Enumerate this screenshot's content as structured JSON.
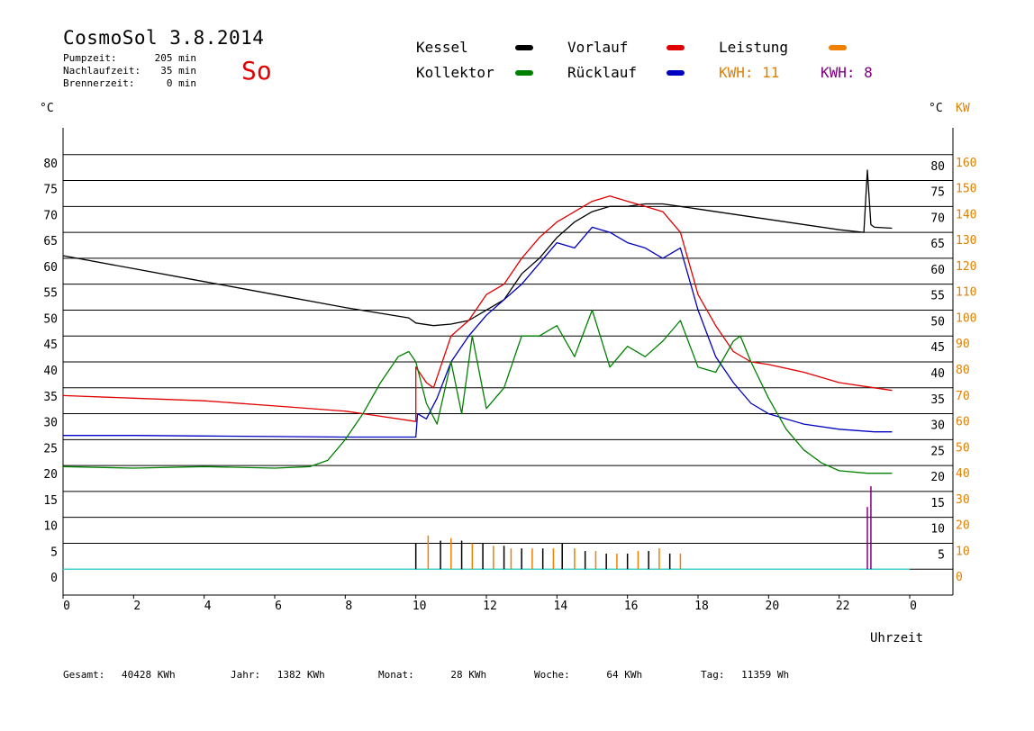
{
  "header": {
    "title": "CosmoSol 3.8.2014",
    "day": "So",
    "stats": [
      {
        "label": "Pumpzeit:",
        "value": "205 min"
      },
      {
        "label": "Nachlaufzeit:",
        "value": "35 min"
      },
      {
        "label": "Brennerzeit:",
        "value": "0 min"
      }
    ]
  },
  "legend": {
    "items": [
      {
        "key": "kessel",
        "label": "Kessel",
        "color": "#000000"
      },
      {
        "key": "vorlauf",
        "label": "Vorlauf",
        "color": "#e00000"
      },
      {
        "key": "leistung",
        "label": "Leistung",
        "color": "#f08000"
      },
      {
        "key": "kollektor",
        "label": "Kollektor",
        "color": "#008000"
      },
      {
        "key": "ruecklauf",
        "label": "Rücklauf",
        "color": "#0000c0"
      }
    ],
    "kwh": [
      {
        "label": "KWH:",
        "value": "11",
        "color": "#e08000"
      },
      {
        "label": "KWH:",
        "value": "8",
        "color": "#800080"
      }
    ]
  },
  "axes": {
    "left_unit": "°C",
    "right_unit": "°C",
    "right_unit2": "KW",
    "xlabel": "Uhrzeit",
    "left_ticks": [
      "0",
      "5",
      "10",
      "15",
      "20",
      "25",
      "30",
      "35",
      "40",
      "45",
      "50",
      "55",
      "60",
      "65",
      "70",
      "75",
      "80"
    ],
    "right_ticks": [
      "5",
      "10",
      "15",
      "20",
      "25",
      "30",
      "35",
      "40",
      "45",
      "50",
      "55",
      "60",
      "65",
      "70",
      "75",
      "80"
    ],
    "kw_ticks": [
      "0",
      "10",
      "20",
      "30",
      "40",
      "50",
      "60",
      "70",
      "80",
      "90",
      "100",
      "110",
      "120",
      "130",
      "140",
      "150",
      "160"
    ],
    "x_ticks": [
      "0",
      "2",
      "4",
      "6",
      "8",
      "10",
      "12",
      "14",
      "16",
      "18",
      "20",
      "22",
      "0"
    ]
  },
  "footer": [
    {
      "label": "Gesamt:",
      "value": "40428 KWh"
    },
    {
      "label": "Jahr:",
      "value": "1382 KWh"
    },
    {
      "label": "Monat:",
      "value": "28 KWh"
    },
    {
      "label": "Woche:",
      "value": "64 KWh"
    },
    {
      "label": "Tag:",
      "value": "11359 Wh"
    }
  ],
  "chart_data": {
    "type": "line",
    "xlabel": "Uhrzeit",
    "ylabel": "°C",
    "xlim": [
      0,
      24
    ],
    "ylim": [
      -5,
      85
    ],
    "grid": true,
    "series": [
      {
        "name": "Kessel",
        "color": "#000000",
        "x": [
          0,
          2,
          4,
          6,
          8,
          9.8,
          10,
          10.5,
          11,
          11.5,
          12,
          12.5,
          13,
          13.5,
          14,
          14.5,
          15,
          15.5,
          16,
          16.5,
          17,
          17.5,
          18,
          20,
          22,
          22.7,
          22.8,
          22.9,
          23,
          23.5
        ],
        "y": [
          60.5,
          58,
          55.5,
          53,
          50.5,
          48.5,
          47.5,
          47,
          47.3,
          48,
          50,
          52,
          57,
          60,
          64,
          67,
          69,
          70,
          70,
          70.5,
          70.5,
          70,
          69.5,
          67.5,
          65.5,
          65,
          77,
          66.5,
          66,
          65.8
        ]
      },
      {
        "name": "Vorlauf",
        "color": "#e00000",
        "x": [
          0,
          2,
          4,
          6,
          8,
          9,
          10,
          10,
          10.3,
          10.5,
          11,
          11.5,
          12,
          12.5,
          13,
          13.5,
          14,
          14.5,
          15,
          15.5,
          16,
          16.5,
          17,
          17.5,
          18,
          18.5,
          19,
          19.5,
          20,
          21,
          22,
          23,
          23.5
        ],
        "y": [
          33.5,
          33,
          32.5,
          31.5,
          30.5,
          29.5,
          28.5,
          39,
          36,
          35,
          45,
          48,
          53,
          55,
          60,
          64,
          67,
          69,
          71,
          72,
          71,
          70,
          69,
          65,
          53,
          47,
          42,
          40,
          39.5,
          38,
          36,
          35,
          34.5
        ]
      },
      {
        "name": "Rücklauf",
        "color": "#0000c0",
        "x": [
          0,
          2,
          4,
          6,
          8,
          10,
          10.05,
          10.3,
          10.6,
          11,
          11.5,
          12,
          12.5,
          13,
          13.5,
          14,
          14.5,
          15,
          15.5,
          16,
          16.5,
          17,
          17.5,
          18,
          18.5,
          19,
          19.5,
          20,
          21,
          22,
          23,
          23.5
        ],
        "y": [
          25.8,
          25.8,
          25.7,
          25.6,
          25.5,
          25.5,
          30,
          29,
          33,
          40,
          45,
          49,
          52,
          55,
          59,
          63,
          62,
          66,
          65,
          63,
          62,
          60,
          62,
          50,
          41,
          36,
          32,
          30,
          28,
          27,
          26.5,
          26.5
        ]
      },
      {
        "name": "Kollektor",
        "color": "#008000",
        "x": [
          0,
          2,
          4,
          6,
          7,
          7.5,
          8,
          8.5,
          9,
          9.5,
          9.8,
          10,
          10.3,
          10.6,
          11,
          11.3,
          11.6,
          12,
          12.5,
          13,
          13.5,
          14,
          14.5,
          15,
          15.5,
          16,
          16.5,
          17,
          17.5,
          18,
          18.5,
          19,
          19.2,
          19.5,
          20,
          20.5,
          21,
          21.5,
          22,
          22.8,
          23,
          23.5
        ],
        "y": [
          19.8,
          19.5,
          19.8,
          19.5,
          19.8,
          21,
          25,
          30,
          36,
          41,
          42,
          40,
          32,
          28,
          40,
          30,
          45,
          31,
          35,
          45,
          45,
          47,
          41,
          50,
          39,
          43,
          41,
          44,
          48,
          39,
          38,
          44,
          45,
          40,
          33,
          27,
          23,
          20.5,
          19,
          18.5,
          18.5,
          18.5
        ]
      }
    ],
    "bars": {
      "name": "Leistung",
      "x": [
        10,
        10.35,
        10.7,
        11,
        11.3,
        11.6,
        11.9,
        12.2,
        12.5,
        12.7,
        13,
        13.3,
        13.6,
        13.9,
        14.15,
        14.5,
        14.8,
        15.1,
        15.4,
        15.7,
        16,
        16.3,
        16.6,
        16.9,
        17.2,
        17.5,
        22.8,
        22.9
      ],
      "y": [
        5,
        6.5,
        5.5,
        6,
        5.5,
        5,
        5,
        4.5,
        4.5,
        4,
        4,
        4,
        4,
        4,
        5,
        4,
        3.5,
        3.5,
        3,
        3,
        3,
        3.5,
        3.5,
        4,
        3,
        3,
        12,
        16
      ]
    }
  }
}
